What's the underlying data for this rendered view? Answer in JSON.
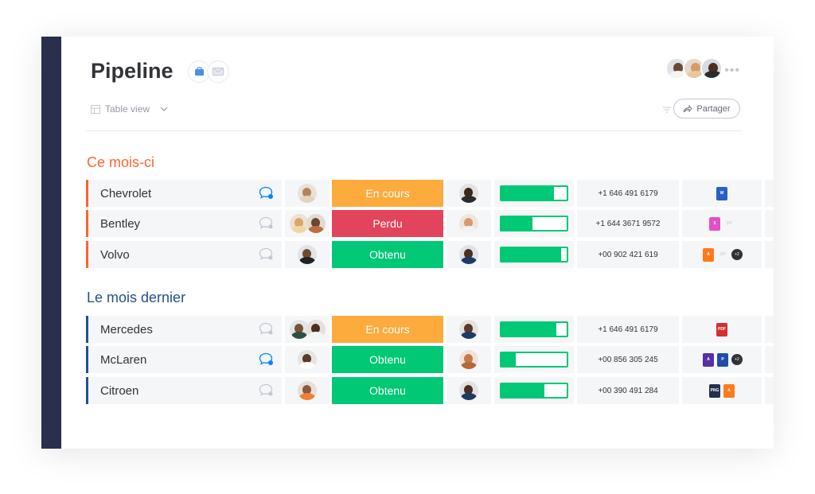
{
  "header": {
    "title": "Pipeline",
    "view_label": "Table view",
    "share_label": "Partager",
    "more_label": "•••"
  },
  "groups": [
    {
      "title": "Ce mois-ci",
      "color": "#ff642e",
      "rows": [
        {
          "name": "Chevrolet",
          "chat_active": true,
          "status": "En cours",
          "status_color": "#fdab3d",
          "progress": 0.8,
          "phone": "+1 646 491 6179",
          "files": [
            "W"
          ]
        },
        {
          "name": "Bentley",
          "chat_active": false,
          "status": "Perdu",
          "status_color": "#e2445c",
          "progress": 0.48,
          "phone": "+1 644 3671 9572",
          "files": [
            "X",
            "ZIP"
          ]
        },
        {
          "name": "Volvo",
          "chat_active": false,
          "status": "Obtenu",
          "status_color": "#00c875",
          "progress": 0.92,
          "phone": "+00 902 421 619",
          "files": [
            "A",
            "ZIP",
            "+2"
          ]
        }
      ]
    },
    {
      "title": "Le mois dernier",
      "color": "#225091",
      "rows": [
        {
          "name": "Mercedes",
          "chat_active": false,
          "status": "En cours",
          "status_color": "#fdab3d",
          "progress": 0.84,
          "phone": "+1 646 491 6179",
          "files": [
            "PDF"
          ]
        },
        {
          "name": "McLaren",
          "chat_active": true,
          "status": "Obtenu",
          "status_color": "#00c875",
          "progress": 0.22,
          "phone": "+00 856 305 245",
          "files": [
            "A",
            "P",
            "+2"
          ]
        },
        {
          "name": "Citroen",
          "chat_active": false,
          "status": "Obtenu",
          "status_color": "#00c875",
          "progress": 0.66,
          "phone": "+00 390 491 284",
          "files": [
            "PNG",
            "A"
          ]
        }
      ]
    }
  ],
  "colors": {
    "sidebar": "#292f4c",
    "chat_active": "#0085ff",
    "progress": "#00c875"
  }
}
